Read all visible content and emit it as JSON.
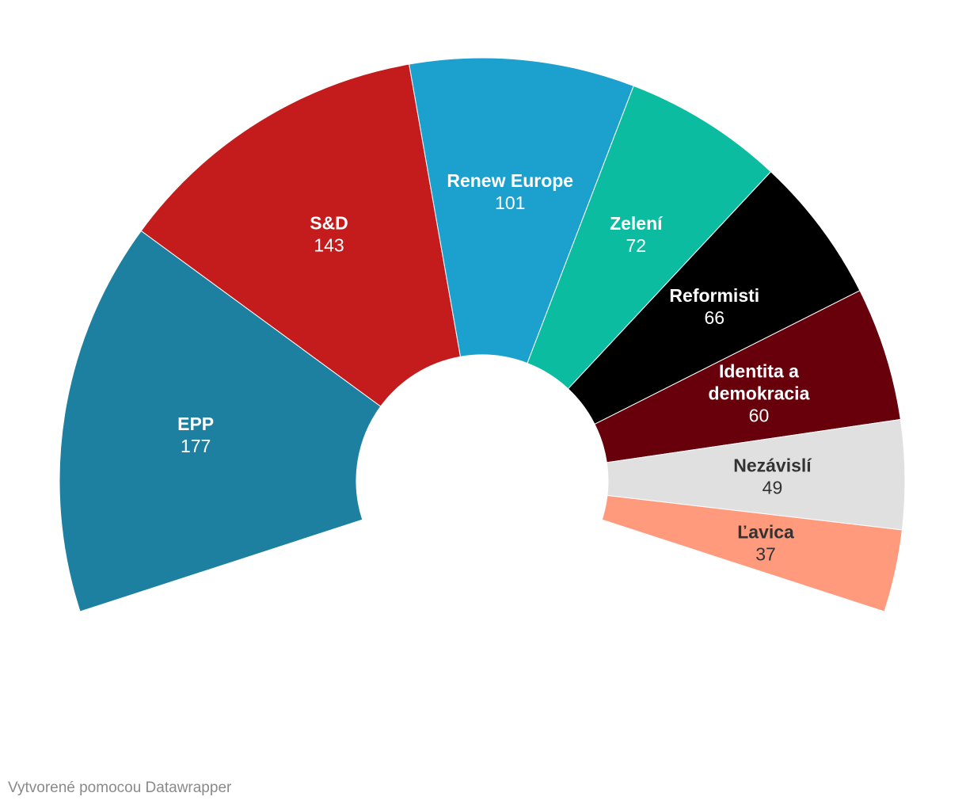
{
  "chart_data": {
    "type": "pie",
    "subtype": "parliament-semicircle",
    "slices": [
      {
        "name": "EPP",
        "value": 177,
        "color": "#1e80a0",
        "label_color": "#ffffff"
      },
      {
        "name": "S&D",
        "value": 143,
        "color": "#c41c1c",
        "label_color": "#ffffff"
      },
      {
        "name": "Renew Europe",
        "value": 101,
        "color": "#1ca1ce",
        "label_color": "#ffffff"
      },
      {
        "name": "Zelení",
        "value": 72,
        "color": "#0bbca0",
        "label_color": "#ffffff"
      },
      {
        "name": "Reformisti",
        "value": 66,
        "color": "#000000",
        "label_color": "#ffffff"
      },
      {
        "name": "Identita a demokracia",
        "value": 60,
        "color": "#68000c",
        "label_color": "#ffffff"
      },
      {
        "name": "Nezávislí",
        "value": 49,
        "color": "#e0e0e0",
        "label_color": "#333333"
      },
      {
        "name": "Ľavica",
        "value": 37,
        "color": "#ff9a7d",
        "label_color": "#333333"
      }
    ]
  },
  "footer": {
    "credit": "Vytvorené pomocou Datawrapper"
  }
}
